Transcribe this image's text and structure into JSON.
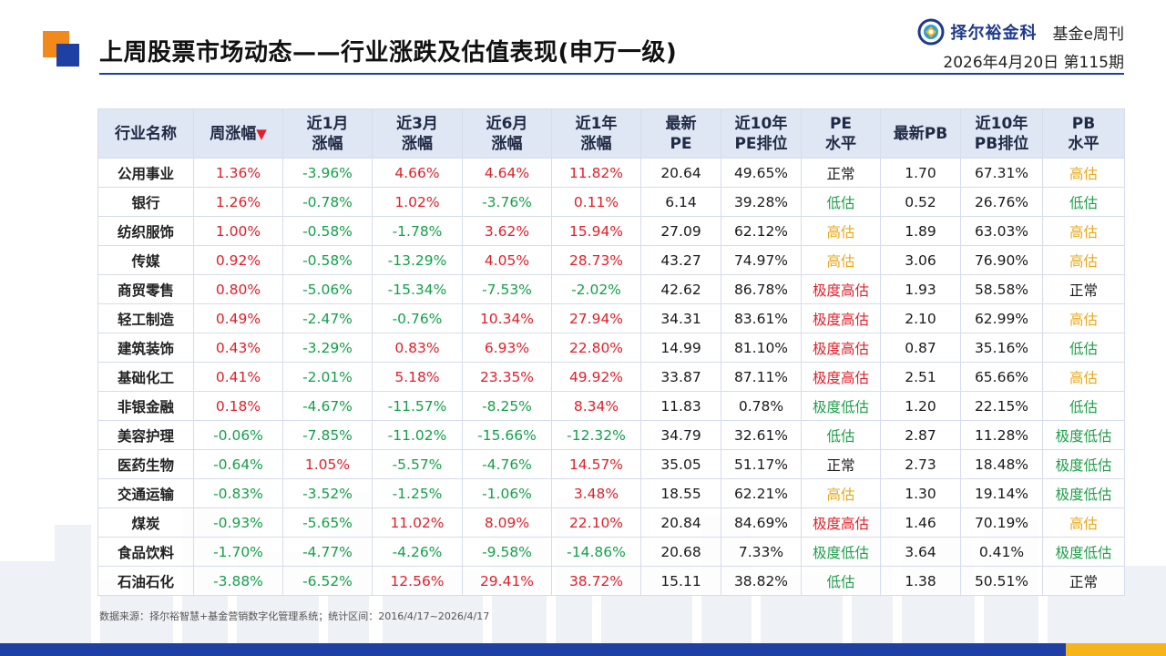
{
  "header": {
    "title": "上周股票市场动态——行业涨跌及估值表现(申万一级)",
    "brand_name": "择尔裕金科",
    "publication": "基金e周刊",
    "issue_line": "2026年4月20日  第115期"
  },
  "table": {
    "columns": [
      "行业名称",
      "周涨幅",
      "近1月\n涨幅",
      "近3月\n涨幅",
      "近6月\n涨幅",
      "近1年\n涨幅",
      "最新\nPE",
      "近10年\nPE排位",
      "PE\n水平",
      "最新PB",
      "近10年\nPB排位",
      "PB\n水平"
    ],
    "sort_indicator": "▼",
    "rows": [
      [
        "公用事业",
        "1.36%",
        "-3.96%",
        "4.66%",
        "4.64%",
        "11.82%",
        "20.64",
        "49.65%",
        "正常",
        "1.70",
        "67.31%",
        "高估"
      ],
      [
        "银行",
        "1.26%",
        "-0.78%",
        "1.02%",
        "-3.76%",
        "0.11%",
        "6.14",
        "39.28%",
        "低估",
        "0.52",
        "26.76%",
        "低估"
      ],
      [
        "纺织服饰",
        "1.00%",
        "-0.58%",
        "-1.78%",
        "3.62%",
        "15.94%",
        "27.09",
        "62.12%",
        "高估",
        "1.89",
        "63.03%",
        "高估"
      ],
      [
        "传媒",
        "0.92%",
        "-0.58%",
        "-13.29%",
        "4.05%",
        "28.73%",
        "43.27",
        "74.97%",
        "高估",
        "3.06",
        "76.90%",
        "高估"
      ],
      [
        "商贸零售",
        "0.80%",
        "-5.06%",
        "-15.34%",
        "-7.53%",
        "-2.02%",
        "42.62",
        "86.78%",
        "极度高估",
        "1.93",
        "58.58%",
        "正常"
      ],
      [
        "轻工制造",
        "0.49%",
        "-2.47%",
        "-0.76%",
        "10.34%",
        "27.94%",
        "34.31",
        "83.61%",
        "极度高估",
        "2.10",
        "62.99%",
        "高估"
      ],
      [
        "建筑装饰",
        "0.43%",
        "-3.29%",
        "0.83%",
        "6.93%",
        "22.80%",
        "14.99",
        "81.10%",
        "极度高估",
        "0.87",
        "35.16%",
        "低估"
      ],
      [
        "基础化工",
        "0.41%",
        "-2.01%",
        "5.18%",
        "23.35%",
        "49.92%",
        "33.87",
        "87.11%",
        "极度高估",
        "2.51",
        "65.66%",
        "高估"
      ],
      [
        "非银金融",
        "0.18%",
        "-4.67%",
        "-11.57%",
        "-8.25%",
        "8.34%",
        "11.83",
        "0.78%",
        "极度低估",
        "1.20",
        "22.15%",
        "低估"
      ],
      [
        "美容护理",
        "-0.06%",
        "-7.85%",
        "-11.02%",
        "-15.66%",
        "-12.32%",
        "34.79",
        "32.61%",
        "低估",
        "2.87",
        "11.28%",
        "极度低估"
      ],
      [
        "医药生物",
        "-0.64%",
        "1.05%",
        "-5.57%",
        "-4.76%",
        "14.57%",
        "35.05",
        "51.17%",
        "正常",
        "2.73",
        "18.48%",
        "极度低估"
      ],
      [
        "交通运输",
        "-0.83%",
        "-3.52%",
        "-1.25%",
        "-1.06%",
        "3.48%",
        "18.55",
        "62.21%",
        "高估",
        "1.30",
        "19.14%",
        "极度低估"
      ],
      [
        "煤炭",
        "-0.93%",
        "-5.65%",
        "11.02%",
        "8.09%",
        "22.10%",
        "20.84",
        "84.69%",
        "极度高估",
        "1.46",
        "70.19%",
        "高估"
      ],
      [
        "食品饮料",
        "-1.70%",
        "-4.77%",
        "-4.26%",
        "-9.58%",
        "-14.86%",
        "20.68",
        "7.33%",
        "极度低估",
        "3.64",
        "0.41%",
        "极度低估"
      ],
      [
        "石油石化",
        "-3.88%",
        "-6.52%",
        "12.56%",
        "29.41%",
        "38.72%",
        "15.11",
        "38.82%",
        "低估",
        "1.38",
        "50.51%",
        "正常"
      ]
    ]
  },
  "footnote": "数据来源：择尔裕智慧+基金营销数字化管理系统；统计区间：2016/4/17~2026/4/17",
  "colors": {
    "rise": "#e0202a",
    "fall": "#14a04a",
    "overvalued": "#e8a81c",
    "undervalued": "#1e9e48",
    "extreme_overvalued": "#e0202a",
    "extreme_undervalued": "#1e9e48",
    "brand_blue": "#1e3fa3",
    "accent_orange": "#f28a1b"
  }
}
